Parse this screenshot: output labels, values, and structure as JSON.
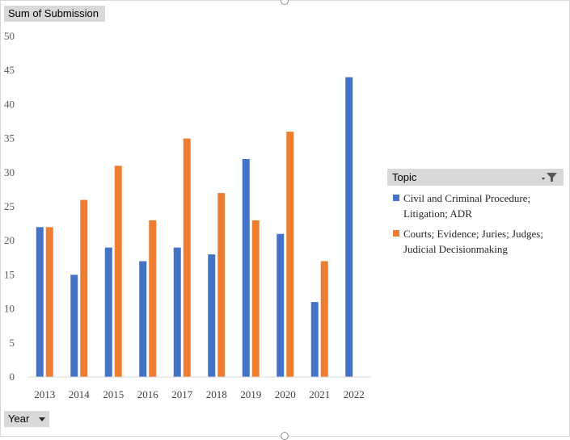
{
  "chart_data": {
    "type": "bar",
    "categories": [
      "2013",
      "2014",
      "2015",
      "2016",
      "2017",
      "2018",
      "2019",
      "2020",
      "2021",
      "2022"
    ],
    "series": [
      {
        "name": "Civil and Criminal Procedure; Litigation; ADR",
        "color": "#4472C4",
        "values": [
          22,
          15,
          19,
          17,
          19,
          18,
          32,
          21,
          11,
          44
        ]
      },
      {
        "name": "Courts; Evidence; Juries; Judges; Judicial Decisionmaking",
        "color": "#ED7D31",
        "values": [
          22,
          26,
          31,
          23,
          35,
          27,
          23,
          36,
          17,
          null
        ]
      }
    ],
    "ylim": [
      0,
      50
    ],
    "yticks": [
      0,
      5,
      10,
      15,
      20,
      25,
      30,
      35,
      40,
      45,
      50
    ],
    "grid": false,
    "legend_position": "right",
    "legend_title": "Topic"
  },
  "field_buttons": {
    "value_field": "Sum of Submission",
    "axis_field": "Year"
  },
  "icons": {
    "legend_filter": "filter-dropdown-icon",
    "axis_dropdown": "dropdown-arrow-icon"
  }
}
